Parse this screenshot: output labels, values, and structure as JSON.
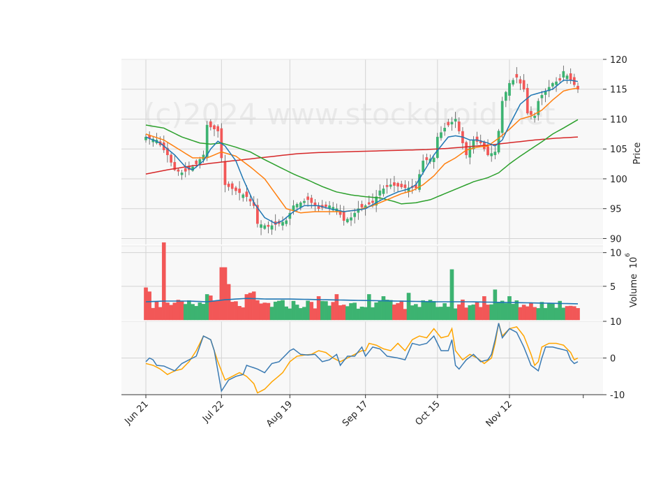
{
  "chart_data": {
    "type": "candlestick",
    "watermark": "(c)2024 www.stockdroid.net",
    "colors": {
      "up": "#3cb371",
      "down": "#f25757",
      "ma_fast": "#1f77b4",
      "ma_mid": "#ff7f0e",
      "ma_slow": "#2ca02c",
      "ma_long": "#d62728",
      "vol_avg": "#1f77b4",
      "osc_a": "#3b7bb3",
      "osc_b": "#ffa500",
      "panel_bg": "#f8f8f8",
      "grid": "#d3d3d3"
    },
    "x_ticks": [
      {
        "label": "Jun 21",
        "index": 0
      },
      {
        "label": "Jul 22",
        "index": 21
      },
      {
        "label": "Aug 19",
        "index": 40
      },
      {
        "label": "Sep 17",
        "index": 61
      },
      {
        "label": "Oct 15",
        "index": 81
      },
      {
        "label": "Nov 12",
        "index": 101
      }
    ],
    "n_bars": 121,
    "price_panel": {
      "ylabel": "Price",
      "ylim": [
        89,
        120
      ],
      "ticks": [
        90,
        95,
        100,
        105,
        110,
        115,
        120
      ],
      "close_anchors": [
        [
          0,
          107
        ],
        [
          3,
          106.5
        ],
        [
          6,
          104
        ],
        [
          8,
          101.5
        ],
        [
          10,
          101
        ],
        [
          12,
          101.5
        ],
        [
          14,
          102.5
        ],
        [
          16,
          104
        ],
        [
          17,
          109
        ],
        [
          20,
          108
        ],
        [
          22,
          99
        ],
        [
          25,
          98
        ],
        [
          28,
          97
        ],
        [
          30,
          95.5
        ],
        [
          31,
          92.5
        ],
        [
          34,
          92
        ],
        [
          37,
          92.5
        ],
        [
          39,
          93
        ],
        [
          41,
          95.5
        ],
        [
          45,
          96.5
        ],
        [
          48,
          95
        ],
        [
          51,
          95.5
        ],
        [
          53,
          95
        ],
        [
          55,
          93
        ],
        [
          57,
          93.5
        ],
        [
          59,
          95
        ],
        [
          61,
          95.5
        ],
        [
          63,
          96
        ],
        [
          65,
          98
        ],
        [
          68,
          99
        ],
        [
          72,
          98.5
        ],
        [
          75,
          98.5
        ],
        [
          77,
          103
        ],
        [
          80,
          103.5
        ],
        [
          81,
          107
        ],
        [
          83,
          108.5
        ],
        [
          86,
          110
        ],
        [
          87,
          108
        ],
        [
          89,
          104
        ],
        [
          91,
          106.5
        ],
        [
          93,
          106
        ],
        [
          95,
          104
        ],
        [
          97,
          104.5
        ],
        [
          98,
          108
        ],
        [
          99,
          113
        ],
        [
          101,
          116
        ],
        [
          103,
          117
        ],
        [
          105,
          115
        ],
        [
          106,
          111
        ],
        [
          108,
          110.5
        ],
        [
          109,
          113
        ],
        [
          110,
          114
        ],
        [
          113,
          116
        ],
        [
          115,
          116.5
        ],
        [
          116,
          118
        ],
        [
          118,
          116.5
        ],
        [
          120,
          115
        ]
      ],
      "ma_fast_anchors": [
        [
          0,
          107
        ],
        [
          4,
          106
        ],
        [
          8,
          104
        ],
        [
          11,
          102
        ],
        [
          13,
          101.5
        ],
        [
          16,
          103
        ],
        [
          18,
          105
        ],
        [
          20,
          106.3
        ],
        [
          22,
          105.5
        ],
        [
          25,
          103
        ],
        [
          27,
          100
        ],
        [
          30,
          96
        ],
        [
          33,
          93.5
        ],
        [
          36,
          92.5
        ],
        [
          38,
          93
        ],
        [
          41,
          94.5
        ],
        [
          44,
          95.5
        ],
        [
          48,
          95.5
        ],
        [
          51,
          95
        ],
        [
          55,
          94.5
        ],
        [
          59,
          94.8
        ],
        [
          61,
          95
        ],
        [
          64,
          96
        ],
        [
          67,
          97
        ],
        [
          70,
          97.8
        ],
        [
          73,
          98.3
        ],
        [
          75,
          99
        ],
        [
          78,
          102
        ],
        [
          80,
          104
        ],
        [
          82,
          105.5
        ],
        [
          84,
          107
        ],
        [
          86,
          107.2
        ],
        [
          88,
          107
        ],
        [
          90,
          106.5
        ],
        [
          92,
          106.5
        ],
        [
          95,
          106
        ],
        [
          97,
          105.5
        ],
        [
          99,
          106.5
        ],
        [
          101,
          109
        ],
        [
          104,
          112.5
        ],
        [
          107,
          114
        ],
        [
          110,
          114.5
        ],
        [
          113,
          115
        ],
        [
          116,
          116.5
        ],
        [
          118,
          116.5
        ],
        [
          120,
          116.3
        ]
      ],
      "ma_mid_anchors": [
        [
          0,
          107.5
        ],
        [
          5,
          106.5
        ],
        [
          9,
          105
        ],
        [
          13,
          103.5
        ],
        [
          17,
          103.5
        ],
        [
          21,
          104.5
        ],
        [
          25,
          103.8
        ],
        [
          29,
          102
        ],
        [
          33,
          100
        ],
        [
          36,
          97.5
        ],
        [
          39,
          95
        ],
        [
          43,
          94.3
        ],
        [
          47,
          94.5
        ],
        [
          51,
          94.5
        ],
        [
          55,
          94.5
        ],
        [
          59,
          94.8
        ],
        [
          63,
          95.5
        ],
        [
          67,
          96.5
        ],
        [
          71,
          97.5
        ],
        [
          74,
          98
        ],
        [
          77,
          99
        ],
        [
          80,
          100.5
        ],
        [
          83,
          102.5
        ],
        [
          86,
          103.5
        ],
        [
          89,
          104.8
        ],
        [
          92,
          105.3
        ],
        [
          95,
          105.5
        ],
        [
          98,
          106.8
        ],
        [
          101,
          108.3
        ],
        [
          104,
          110
        ],
        [
          107,
          110.5
        ],
        [
          110,
          111.5
        ],
        [
          113,
          113.2
        ],
        [
          116,
          114.7
        ],
        [
          118,
          115
        ],
        [
          120,
          115.2
        ]
      ],
      "ma_slow_anchors": [
        [
          0,
          109
        ],
        [
          5,
          108.5
        ],
        [
          10,
          107
        ],
        [
          15,
          106
        ],
        [
          18,
          105.8
        ],
        [
          21,
          106
        ],
        [
          25,
          105.3
        ],
        [
          29,
          104.5
        ],
        [
          33,
          103.2
        ],
        [
          37,
          102
        ],
        [
          41,
          100.8
        ],
        [
          45,
          99.8
        ],
        [
          49,
          98.7
        ],
        [
          53,
          97.8
        ],
        [
          57,
          97.3
        ],
        [
          61,
          97
        ],
        [
          65,
          96.8
        ],
        [
          69,
          96.2
        ],
        [
          71,
          95.8
        ],
        [
          75,
          96
        ],
        [
          79,
          96.5
        ],
        [
          83,
          97.5
        ],
        [
          87,
          98.5
        ],
        [
          91,
          99.5
        ],
        [
          95,
          100.2
        ],
        [
          98,
          101
        ],
        [
          101,
          102.5
        ],
        [
          104,
          103.8
        ],
        [
          107,
          105
        ],
        [
          110,
          106.2
        ],
        [
          113,
          107.5
        ],
        [
          116,
          108.5
        ],
        [
          118,
          109.2
        ],
        [
          120,
          109.9
        ]
      ],
      "ma_long_anchors": [
        [
          0,
          100.8
        ],
        [
          6,
          101.5
        ],
        [
          12,
          102.1
        ],
        [
          18,
          102.6
        ],
        [
          24,
          103
        ],
        [
          30,
          103.4
        ],
        [
          36,
          103.8
        ],
        [
          42,
          104.2
        ],
        [
          48,
          104.4
        ],
        [
          54,
          104.5
        ],
        [
          60,
          104.6
        ],
        [
          66,
          104.7
        ],
        [
          72,
          104.8
        ],
        [
          78,
          104.9
        ],
        [
          84,
          105.1
        ],
        [
          90,
          105.4
        ],
        [
          96,
          105.7
        ],
        [
          102,
          106.1
        ],
        [
          108,
          106.5
        ],
        [
          114,
          106.8
        ],
        [
          120,
          107
        ]
      ]
    },
    "volume_panel": {
      "ylabel": "Volume",
      "exponent_label": "10",
      "exponent": "6",
      "ylim": [
        0,
        11
      ],
      "ticks": [
        5,
        10
      ],
      "spikes": [
        [
          0,
          4.8
        ],
        [
          1,
          4.2
        ],
        [
          5,
          11.5
        ],
        [
          7,
          2.2
        ],
        [
          17,
          3.8
        ],
        [
          18,
          3.6
        ],
        [
          21,
          7.8
        ],
        [
          22,
          7.8
        ],
        [
          23,
          5.3
        ],
        [
          28,
          3.8
        ],
        [
          29,
          4
        ],
        [
          30,
          4.2
        ],
        [
          48,
          3.5
        ],
        [
          53,
          3.8
        ],
        [
          62,
          3.8
        ],
        [
          66,
          3.5
        ],
        [
          73,
          4
        ],
        [
          85,
          7.5
        ],
        [
          88,
          3
        ],
        [
          94,
          3.5
        ],
        [
          97,
          4.5
        ],
        [
          101,
          3.5
        ],
        [
          115,
          2.8
        ]
      ],
      "avg_anchors": [
        [
          0,
          2.7
        ],
        [
          5,
          2.8
        ],
        [
          12,
          2.8
        ],
        [
          17,
          2.7
        ],
        [
          22,
          3
        ],
        [
          28,
          3.2
        ],
        [
          34,
          3.1
        ],
        [
          40,
          3.1
        ],
        [
          50,
          3
        ],
        [
          60,
          2.9
        ],
        [
          70,
          2.8
        ],
        [
          80,
          2.7
        ],
        [
          90,
          2.7
        ],
        [
          100,
          2.6
        ],
        [
          110,
          2.5
        ],
        [
          120,
          2.4
        ]
      ]
    },
    "osc_panel": {
      "ylim": [
        -10,
        10
      ],
      "ticks": [
        -10,
        0,
        10
      ],
      "line_a_anchors": [
        [
          0,
          -1
        ],
        [
          1,
          0
        ],
        [
          2,
          -0.5
        ],
        [
          3,
          -2
        ],
        [
          5,
          -2.2
        ],
        [
          8,
          -3.5
        ],
        [
          10,
          -1.5
        ],
        [
          12,
          -0.5
        ],
        [
          14,
          0.5
        ],
        [
          16,
          6
        ],
        [
          18,
          5
        ],
        [
          19,
          2
        ],
        [
          21,
          -9
        ],
        [
          23,
          -6
        ],
        [
          25,
          -5
        ],
        [
          27,
          -4.5
        ],
        [
          28,
          -2
        ],
        [
          31,
          -3
        ],
        [
          33,
          -4
        ],
        [
          35,
          -1.5
        ],
        [
          37,
          -1
        ],
        [
          40,
          2
        ],
        [
          41,
          2.5
        ],
        [
          43,
          1
        ],
        [
          45,
          0.8
        ],
        [
          47,
          1
        ],
        [
          49,
          -1
        ],
        [
          51,
          -0.5
        ],
        [
          53,
          1
        ],
        [
          54,
          -2
        ],
        [
          56,
          0.5
        ],
        [
          58,
          0.5
        ],
        [
          60,
          3
        ],
        [
          61,
          0.5
        ],
        [
          63,
          3
        ],
        [
          65,
          2.5
        ],
        [
          67,
          0.5
        ],
        [
          70,
          0
        ],
        [
          72,
          -0.5
        ],
        [
          74,
          4
        ],
        [
          76,
          3.5
        ],
        [
          78,
          4
        ],
        [
          80,
          6
        ],
        [
          82,
          2
        ],
        [
          84,
          2
        ],
        [
          85,
          5
        ],
        [
          86,
          -2
        ],
        [
          87,
          -3
        ],
        [
          89,
          -0.5
        ],
        [
          91,
          1
        ],
        [
          93,
          -1
        ],
        [
          95,
          -0.5
        ],
        [
          96,
          1
        ],
        [
          97,
          5
        ],
        [
          98,
          9.5
        ],
        [
          99,
          5.5
        ],
        [
          101,
          8
        ],
        [
          103,
          7
        ],
        [
          105,
          3
        ],
        [
          107,
          -2
        ],
        [
          109,
          -3.5
        ],
        [
          110,
          0
        ],
        [
          111,
          3
        ],
        [
          113,
          3
        ],
        [
          115,
          2.5
        ],
        [
          117,
          2
        ],
        [
          118,
          -0.5
        ],
        [
          119,
          -1.5
        ],
        [
          120,
          -1
        ]
      ],
      "line_b_anchors": [
        [
          0,
          -1.5
        ],
        [
          2,
          -2
        ],
        [
          4,
          -3
        ],
        [
          6,
          -4.5
        ],
        [
          8,
          -3.5
        ],
        [
          10,
          -3
        ],
        [
          12,
          -1
        ],
        [
          14,
          2
        ],
        [
          16,
          6
        ],
        [
          18,
          5
        ],
        [
          20,
          -1
        ],
        [
          22,
          -6
        ],
        [
          24,
          -5
        ],
        [
          26,
          -4
        ],
        [
          28,
          -5
        ],
        [
          30,
          -7
        ],
        [
          31,
          -9.5
        ],
        [
          33,
          -8.5
        ],
        [
          35,
          -6.5
        ],
        [
          38,
          -4
        ],
        [
          40,
          -1
        ],
        [
          42,
          0.5
        ],
        [
          44,
          0.8
        ],
        [
          46,
          1
        ],
        [
          48,
          2
        ],
        [
          50,
          1.5
        ],
        [
          52,
          0
        ],
        [
          54,
          -1
        ],
        [
          56,
          0
        ],
        [
          58,
          1
        ],
        [
          60,
          2
        ],
        [
          61,
          2
        ],
        [
          62,
          4
        ],
        [
          64,
          3.5
        ],
        [
          66,
          2.5
        ],
        [
          68,
          2
        ],
        [
          70,
          4
        ],
        [
          72,
          2
        ],
        [
          74,
          5
        ],
        [
          76,
          6
        ],
        [
          78,
          5.5
        ],
        [
          80,
          8
        ],
        [
          82,
          5.5
        ],
        [
          84,
          6
        ],
        [
          85,
          8
        ],
        [
          86,
          2
        ],
        [
          88,
          -0.5
        ],
        [
          90,
          1
        ],
        [
          92,
          0
        ],
        [
          94,
          -1.5
        ],
        [
          96,
          0
        ],
        [
          97,
          4
        ],
        [
          98,
          9.5
        ],
        [
          99,
          6
        ],
        [
          101,
          8
        ],
        [
          103,
          8.5
        ],
        [
          105,
          6
        ],
        [
          107,
          1
        ],
        [
          108,
          -2
        ],
        [
          109,
          -1
        ],
        [
          110,
          3
        ],
        [
          112,
          4
        ],
        [
          114,
          4
        ],
        [
          116,
          3.5
        ],
        [
          118,
          1.5
        ],
        [
          119,
          -0.5
        ],
        [
          120,
          0
        ]
      ]
    }
  }
}
